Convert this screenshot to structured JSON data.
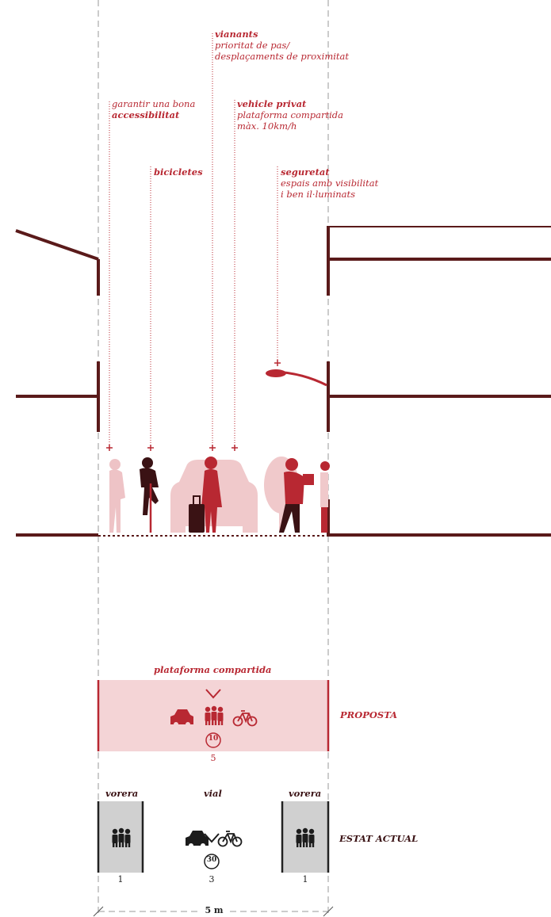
{
  "annotations": {
    "vianants": {
      "title": "vianants",
      "line1": "prioritat de pas/",
      "line2": "desplaçaments de proximitat"
    },
    "accessibilitat": {
      "line1": "garantir una bona",
      "title": "accessibilitat"
    },
    "vehicle": {
      "title": "vehicle privat",
      "line1": "plataforma compartida",
      "line2": "màx. 10km/h"
    },
    "bicicletes": {
      "title": "bicicletes"
    },
    "seguretat": {
      "title": "seguretat",
      "line1": "espais amb visibilitat",
      "line2": "i ben il·luminats"
    }
  },
  "proposta": {
    "title": "plataforma compartida",
    "label": "PROPOSTA",
    "speed": "10",
    "width": "5",
    "icons": [
      "car-icon",
      "pedestrians-icon",
      "bicycle-icon",
      "chevron-down-icon"
    ]
  },
  "estat_actual": {
    "label": "ESTAT ACTUAL",
    "left_title": "vorera",
    "center_title": "vial",
    "right_title": "vorera",
    "left_width": "1",
    "center_width": "3",
    "right_width": "1",
    "speed": "30",
    "icons": [
      "pedestrians-icon",
      "car-icon",
      "bicycle-icon",
      "chevron-down-icon"
    ]
  },
  "dimension": {
    "label": "5 m"
  },
  "colors": {
    "accent": "#b82832",
    "dark": "#5a1a1a",
    "platform": "#f4d4d6",
    "sidewalk": "#d0d0d0"
  }
}
